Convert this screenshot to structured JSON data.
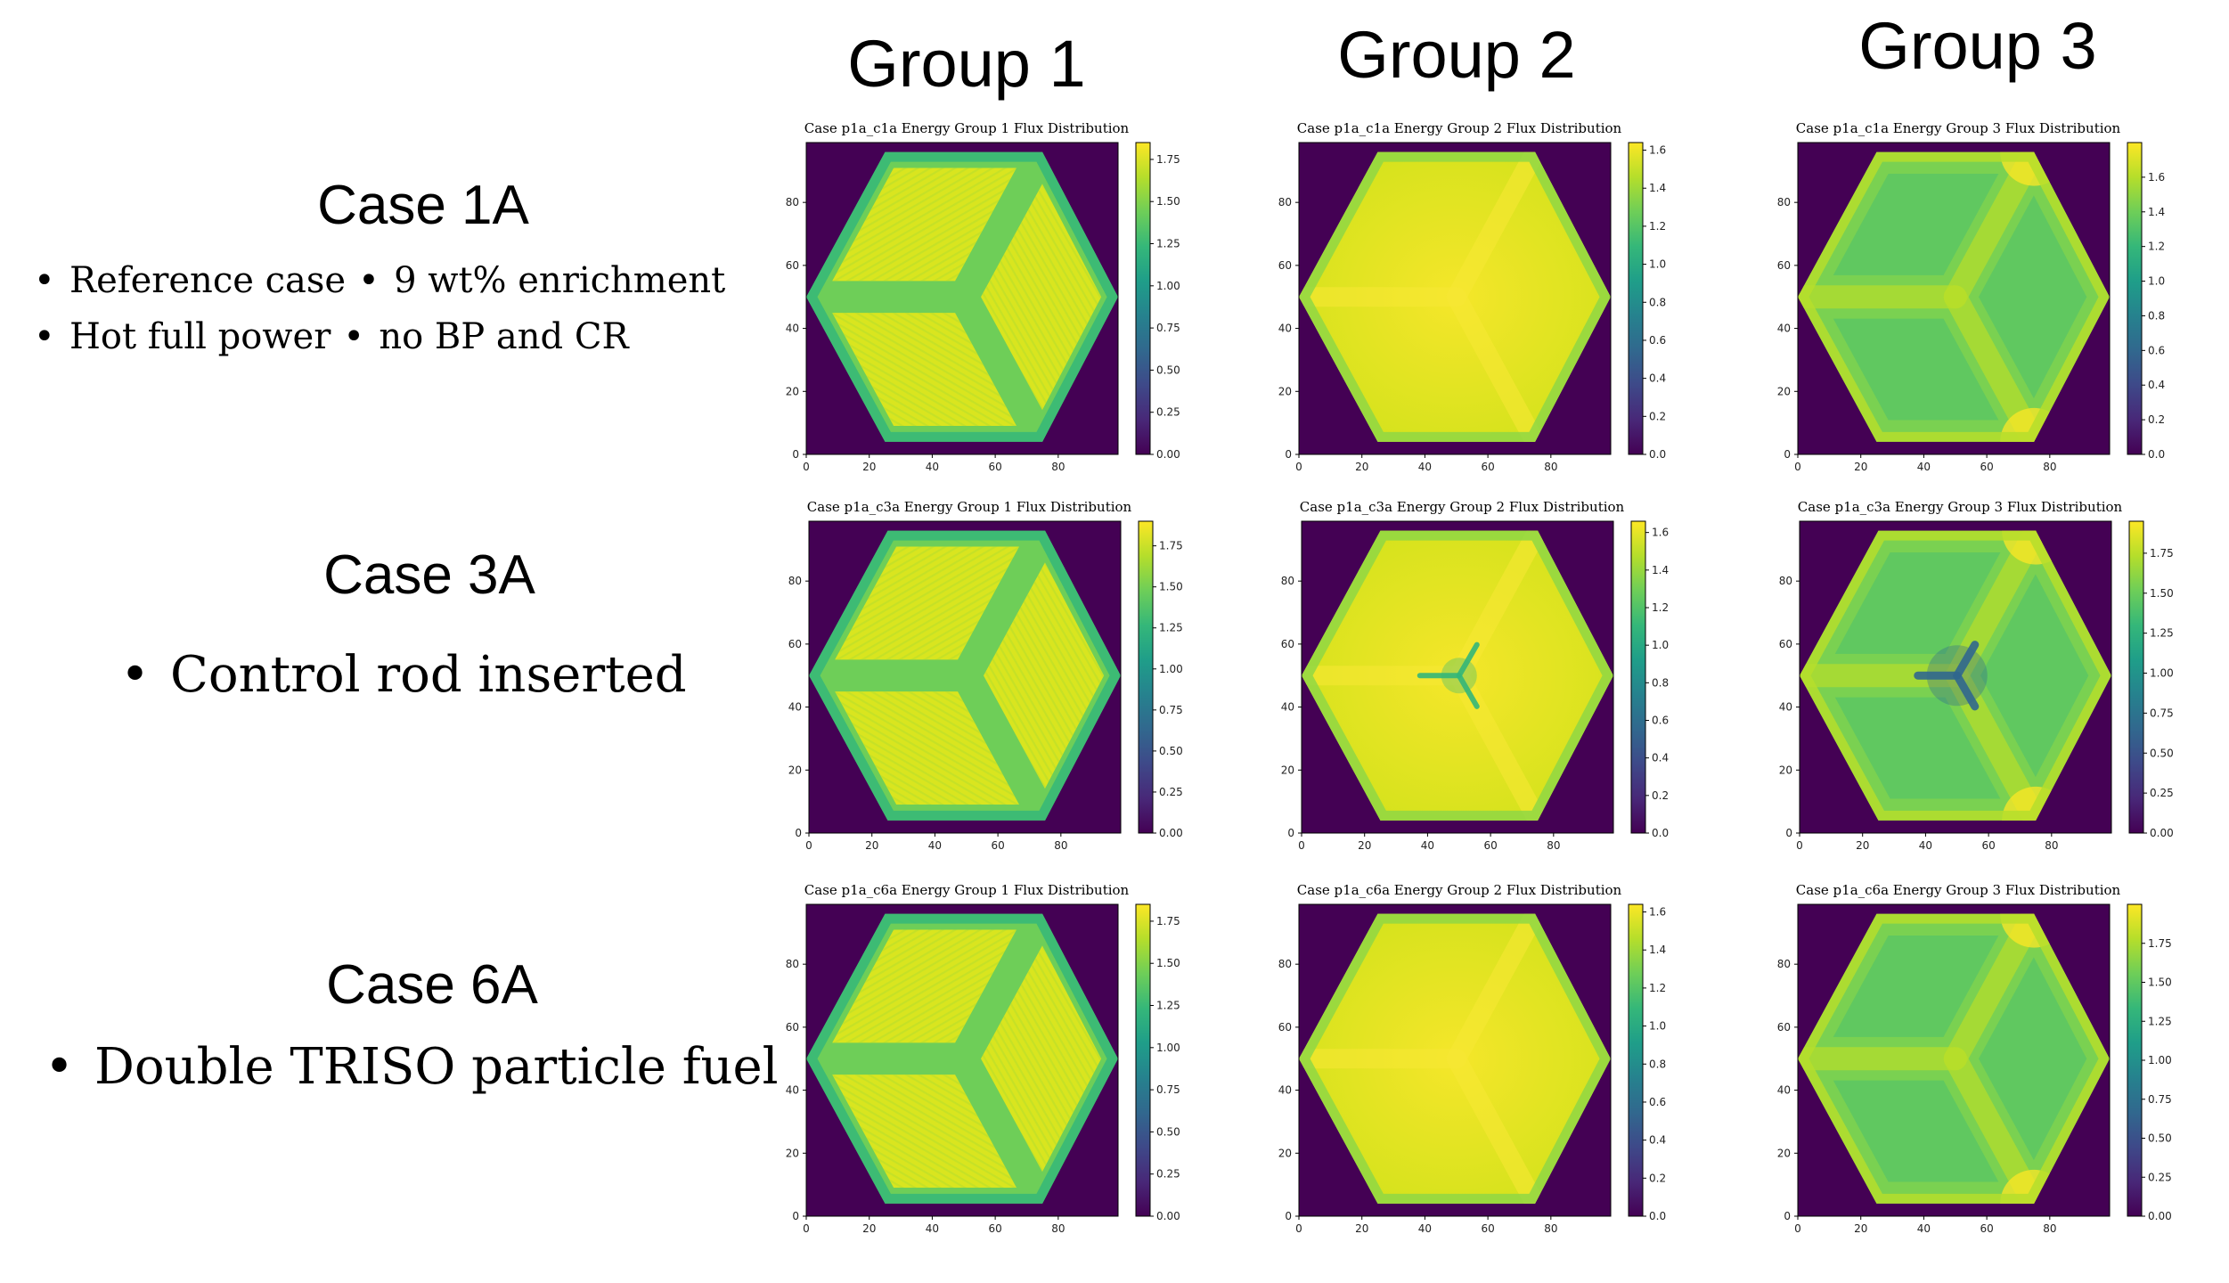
{
  "groups": [
    "Group 1",
    "Group 2",
    "Group 3"
  ],
  "cases": [
    {
      "title": "Case 1A",
      "bullets": [
        [
          "Reference case",
          "9 wt% enrichment"
        ],
        [
          "Hot full power",
          "no BP and CR"
        ]
      ]
    },
    {
      "title": "Case 3A",
      "bullets": [
        [
          "Control rod inserted"
        ]
      ]
    },
    {
      "title": "Case 6A",
      "bullets": [
        [
          "Double TRISO particle fuel"
        ]
      ]
    }
  ],
  "bullet_symbol": "•",
  "colors": {
    "viridis_low": "#440154",
    "viridis_mid": "#21918c",
    "viridis_high": "#fde725",
    "background": "#ffffff"
  },
  "chart_data": [
    {
      "type": "heatmap",
      "title": "Case p1a_c1a Energy Group 1 Flux Distribution",
      "xticks": [
        0,
        20,
        40,
        60,
        80
      ],
      "yticks": [
        0,
        20,
        40,
        60,
        80
      ],
      "xlim": [
        0,
        99
      ],
      "ylim": [
        0,
        99
      ],
      "colorbar_ticks": [
        "0.00",
        "0.25",
        "0.50",
        "0.75",
        "1.00",
        "1.25",
        "1.50",
        "1.75"
      ],
      "colorbar_range": [
        0,
        1.85
      ],
      "pattern": "fuel-blocks",
      "center_dip": 0
    },
    {
      "type": "heatmap",
      "title": "Case p1a_c1a Energy Group 2 Flux Distribution",
      "xticks": [
        0,
        20,
        40,
        60,
        80
      ],
      "yticks": [
        0,
        20,
        40,
        60,
        80
      ],
      "xlim": [
        0,
        99
      ],
      "ylim": [
        0,
        99
      ],
      "colorbar_ticks": [
        "0.0",
        "0.2",
        "0.4",
        "0.6",
        "0.8",
        "1.0",
        "1.2",
        "1.4",
        "1.6"
      ],
      "colorbar_range": [
        0,
        1.64
      ],
      "pattern": "smooth",
      "center_dip": 0
    },
    {
      "type": "heatmap",
      "title": "Case p1a_c1a Energy Group 3 Flux Distribution",
      "xticks": [
        0,
        20,
        40,
        60,
        80
      ],
      "yticks": [
        0,
        20,
        40,
        60,
        80
      ],
      "xlim": [
        0,
        99
      ],
      "ylim": [
        0,
        99
      ],
      "colorbar_ticks": [
        "0.0",
        "0.2",
        "0.4",
        "0.6",
        "0.8",
        "1.0",
        "1.2",
        "1.4",
        "1.6"
      ],
      "colorbar_range": [
        0,
        1.8
      ],
      "pattern": "thermal",
      "center_dip": 0
    },
    {
      "type": "heatmap",
      "title": "Case p1a_c3a Energy Group 1 Flux Distribution",
      "xticks": [
        0,
        20,
        40,
        60,
        80
      ],
      "yticks": [
        0,
        20,
        40,
        60,
        80
      ],
      "xlim": [
        0,
        99
      ],
      "ylim": [
        0,
        99
      ],
      "colorbar_ticks": [
        "0.00",
        "0.25",
        "0.50",
        "0.75",
        "1.00",
        "1.25",
        "1.50",
        "1.75"
      ],
      "colorbar_range": [
        0,
        1.9
      ],
      "pattern": "fuel-blocks",
      "center_dip": 0
    },
    {
      "type": "heatmap",
      "title": "Case p1a_c3a Energy Group 2 Flux Distribution",
      "xticks": [
        0,
        20,
        40,
        60,
        80
      ],
      "yticks": [
        0,
        20,
        40,
        60,
        80
      ],
      "xlim": [
        0,
        99
      ],
      "ylim": [
        0,
        99
      ],
      "colorbar_ticks": [
        "0.0",
        "0.2",
        "0.4",
        "0.6",
        "0.8",
        "1.0",
        "1.2",
        "1.4",
        "1.6"
      ],
      "colorbar_range": [
        0,
        1.66
      ],
      "pattern": "smooth",
      "center_dip": 0.3
    },
    {
      "type": "heatmap",
      "title": "Case p1a_c3a Energy Group 3 Flux Distribution",
      "xticks": [
        0,
        20,
        40,
        60,
        80
      ],
      "yticks": [
        0,
        20,
        40,
        60,
        80
      ],
      "xlim": [
        0,
        99
      ],
      "ylim": [
        0,
        99
      ],
      "colorbar_ticks": [
        "0.00",
        "0.25",
        "0.50",
        "0.75",
        "1.00",
        "1.25",
        "1.50",
        "1.75"
      ],
      "colorbar_range": [
        0,
        1.95
      ],
      "pattern": "thermal",
      "center_dip": 0.55
    },
    {
      "type": "heatmap",
      "title": "Case p1a_c6a Energy Group 1 Flux Distribution",
      "xticks": [
        0,
        20,
        40,
        60,
        80
      ],
      "yticks": [
        0,
        20,
        40,
        60,
        80
      ],
      "xlim": [
        0,
        99
      ],
      "ylim": [
        0,
        99
      ],
      "colorbar_ticks": [
        "0.00",
        "0.25",
        "0.50",
        "0.75",
        "1.00",
        "1.25",
        "1.50",
        "1.75"
      ],
      "colorbar_range": [
        0,
        1.85
      ],
      "pattern": "fuel-blocks",
      "center_dip": 0
    },
    {
      "type": "heatmap",
      "title": "Case p1a_c6a Energy Group 2 Flux Distribution",
      "xticks": [
        0,
        20,
        40,
        60,
        80
      ],
      "yticks": [
        0,
        20,
        40,
        60,
        80
      ],
      "xlim": [
        0,
        99
      ],
      "ylim": [
        0,
        99
      ],
      "colorbar_ticks": [
        "0.0",
        "0.2",
        "0.4",
        "0.6",
        "0.8",
        "1.0",
        "1.2",
        "1.4",
        "1.6"
      ],
      "colorbar_range": [
        0,
        1.64
      ],
      "pattern": "smooth",
      "center_dip": 0
    },
    {
      "type": "heatmap",
      "title": "Case p1a_c6a Energy Group 3 Flux Distribution",
      "xticks": [
        0,
        20,
        40,
        60,
        80
      ],
      "yticks": [
        0,
        20,
        40,
        60,
        80
      ],
      "xlim": [
        0,
        99
      ],
      "ylim": [
        0,
        99
      ],
      "colorbar_ticks": [
        "0.00",
        "0.25",
        "0.50",
        "0.75",
        "1.00",
        "1.25",
        "1.50",
        "1.75"
      ],
      "colorbar_range": [
        0,
        2.0
      ],
      "pattern": "thermal",
      "center_dip": 0
    }
  ]
}
